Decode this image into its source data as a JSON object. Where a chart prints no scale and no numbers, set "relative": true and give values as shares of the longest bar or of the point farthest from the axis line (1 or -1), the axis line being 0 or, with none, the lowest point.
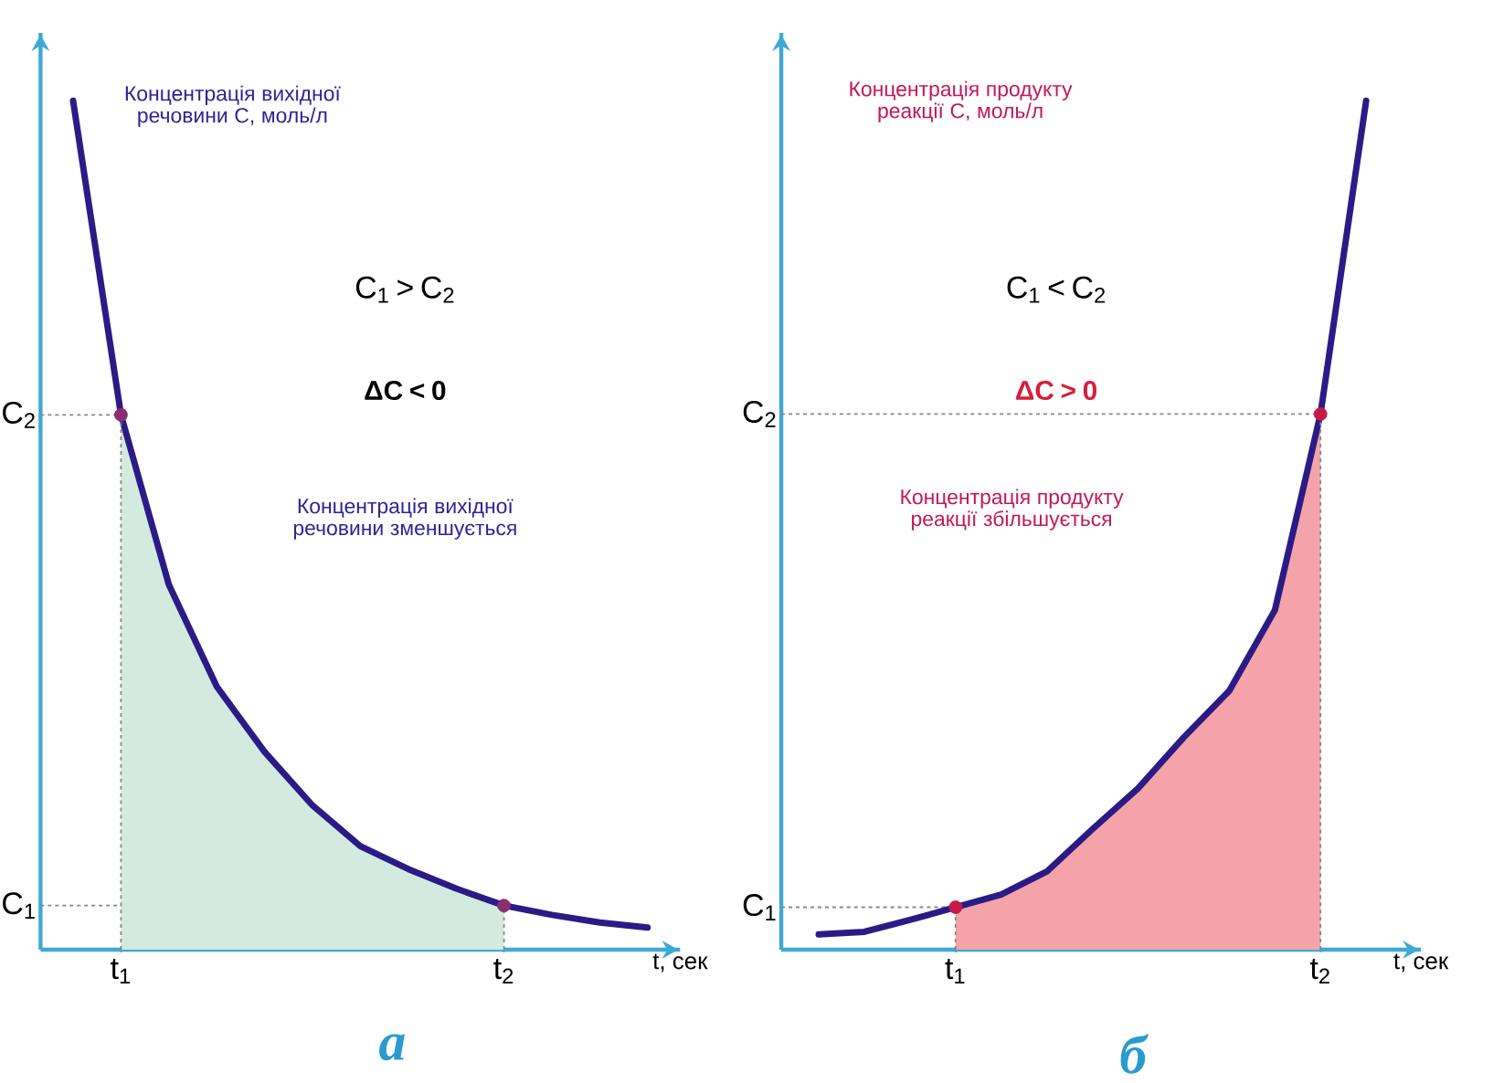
{
  "chart_data": [
    {
      "type": "line",
      "relative": true,
      "title": "а",
      "ylabel": "Концентрація вихідної речовини С, моль/л",
      "xlabel": "t, сек",
      "categories": [
        null,
        "t$_{1}$",
        null,
        null,
        null,
        null,
        null,
        null,
        null,
        "t$_{2}$",
        null,
        null,
        null
      ],
      "annotations": [
        "C$_{1}$ > C$_{2}$",
        "ΔC < 0",
        "Концентрація вихідної речовини зменшується"
      ],
      "ref_lines": [
        {
          "axis": "y",
          "value": 0.63,
          "label": "C$_{2}$",
          "color": "#888888",
          "line_style": "dotted"
        },
        {
          "axis": "y",
          "value": 0.052,
          "label": "C$_{1}$",
          "color": "#888888",
          "line_style": "dotted"
        }
      ],
      "series": [
        {
          "type": "area",
          "color": "#d3ebdf",
          "values": [
            null,
            0.63,
            0.43,
            0.31,
            0.233,
            0.17,
            0.122,
            0.095,
            0.072,
            0.052,
            null,
            null,
            null
          ]
        },
        {
          "color": "#2b1b86",
          "values": [
            1,
            0.63,
            0.43,
            0.31,
            0.233,
            0.17,
            0.122,
            0.095,
            0.072,
            0.052,
            0.041,
            0.032,
            0.026
          ]
        },
        {
          "type": "scatter",
          "color": "#8a2f6e",
          "marker": "circle",
          "values": [
            null,
            0.63,
            null,
            null,
            null,
            null,
            null,
            null,
            null,
            0.052,
            null,
            null,
            null
          ]
        }
      ]
    },
    {
      "type": "line",
      "relative": true,
      "title": "б",
      "ylabel": "Концентрація продукту реакції С, моль/л",
      "xlabel": "t, сек",
      "categories": [
        null,
        null,
        null,
        "t$_{1}$",
        null,
        null,
        null,
        null,
        null,
        null,
        null,
        "t$_{2}$",
        null
      ],
      "annotations": [
        "C$_{1}$ < C$_{2}$",
        "ΔC > 0",
        "Концентрація продукту реакції збільшується"
      ],
      "ref_lines": [
        {
          "axis": "y",
          "value": 0.631,
          "label": "C$_{2}$",
          "color": "#888888",
          "line_style": "dotted"
        },
        {
          "axis": "y",
          "value": 0.05,
          "label": "C$_{1}$",
          "color": "#888888",
          "line_style": "dotted"
        }
      ],
      "series": [
        {
          "type": "area",
          "color": "#f4a4a8",
          "values": [
            null,
            null,
            null,
            0.05,
            0.065,
            0.092,
            0.142,
            0.19,
            0.25,
            0.305,
            0.4,
            0.631,
            null
          ]
        },
        {
          "color": "#2b1b86",
          "values": [
            0.018,
            0.021,
            0.035,
            0.05,
            0.065,
            0.092,
            0.142,
            0.19,
            0.25,
            0.305,
            0.4,
            0.631,
            1
          ]
        },
        {
          "type": "scatter",
          "color": "#c8184a",
          "marker": "circle",
          "values": [
            null,
            null,
            null,
            0.05,
            null,
            null,
            null,
            null,
            null,
            null,
            null,
            0.631,
            null
          ]
        }
      ]
    }
  ]
}
